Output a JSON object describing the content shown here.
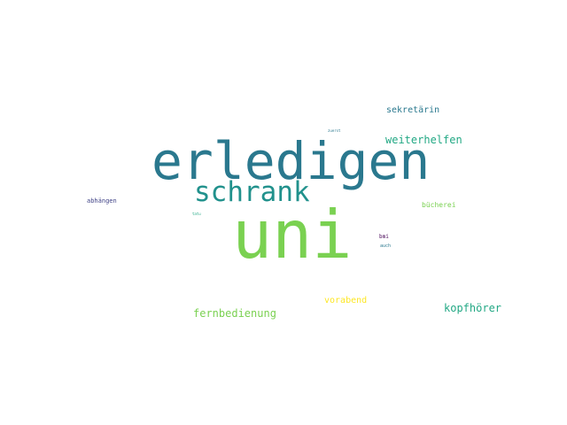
{
  "words": [
    {
      "text": "uni",
      "color": "#7ad151"
    },
    {
      "text": "erledigen",
      "color": "#2a788e"
    },
    {
      "text": "schrank",
      "color": "#21918c"
    },
    {
      "text": "weiterhelfen",
      "color": "#22a884"
    },
    {
      "text": "sekretärin",
      "color": "#2a788e"
    },
    {
      "text": "kopfhörer",
      "color": "#22a884"
    },
    {
      "text": "fernbedienung",
      "color": "#7ad151"
    },
    {
      "text": "vorabend",
      "color": "#fde725"
    },
    {
      "text": "bücherei",
      "color": "#7ad151"
    },
    {
      "text": "abhängen",
      "color": "#414487"
    },
    {
      "text": "bmi",
      "color": "#440154"
    },
    {
      "text": "auch",
      "color": "#2a788e"
    },
    {
      "text": "tatu",
      "color": "#22a884"
    },
    {
      "text": "zuerst",
      "color": "#2a788e"
    }
  ]
}
